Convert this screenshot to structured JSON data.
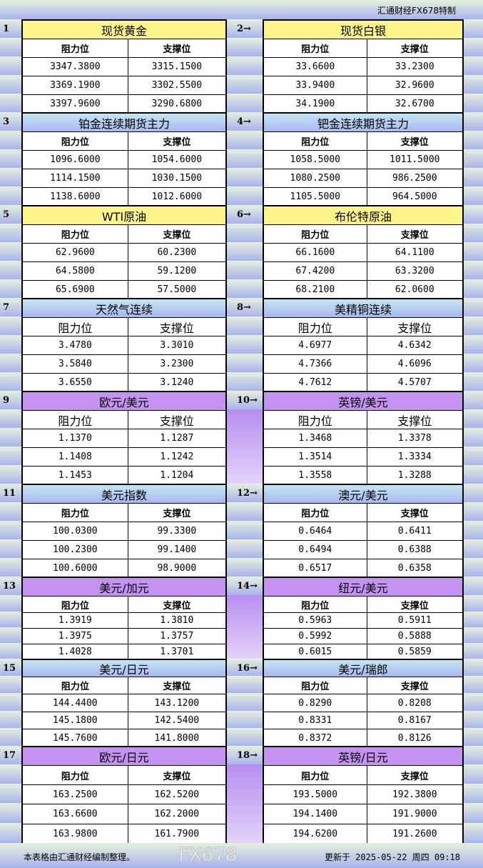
{
  "brand": "汇通财经FX678特制",
  "colors": {
    "yellow": "#fff58a",
    "blue": "#b8d4f2",
    "purple": "#c493f2"
  },
  "col_resist": "阻力位",
  "col_support": "支撑位",
  "sections": [
    {
      "theme": "yellow",
      "left": {
        "num": "1",
        "title": "现货黄金",
        "rows": [
          [
            "3347.3800",
            "3315.1500"
          ],
          [
            "3369.1900",
            "3302.5500"
          ],
          [
            "3397.9600",
            "3290.6800"
          ]
        ]
      },
      "right": {
        "num": "2→",
        "title": "现货白银",
        "rows": [
          [
            "33.6600",
            "33.2300"
          ],
          [
            "33.9400",
            "32.9600"
          ],
          [
            "34.1900",
            "32.6700"
          ]
        ]
      }
    },
    {
      "theme": "blue",
      "left": {
        "num": "3",
        "title": "铂金连续期货主力",
        "rows": [
          [
            "1096.6000",
            "1054.6000"
          ],
          [
            "1114.1500",
            "1030.1500"
          ],
          [
            "1138.6000",
            "1012.6000"
          ]
        ]
      },
      "right": {
        "num": "4→",
        "title": "钯金连续期货主力",
        "rows": [
          [
            "1058.5000",
            "1011.5000"
          ],
          [
            "1080.2500",
            "986.2500"
          ],
          [
            "1105.5000",
            "964.5000"
          ]
        ]
      }
    },
    {
      "theme": "yellow",
      "left": {
        "num": "5",
        "title": "WTI原油",
        "rows": [
          [
            "62.9600",
            "60.2300"
          ],
          [
            "64.5800",
            "59.1200"
          ],
          [
            "65.6900",
            "57.5000"
          ]
        ]
      },
      "right": {
        "num": "6→",
        "title": "布伦特原油",
        "rows": [
          [
            "66.1600",
            "64.1100"
          ],
          [
            "67.4200",
            "63.3200"
          ],
          [
            "68.2100",
            "62.0600"
          ]
        ]
      }
    },
    {
      "theme": "blue",
      "big": true,
      "left": {
        "num": "7",
        "title": "天然气连续",
        "rows": [
          [
            "3.4780",
            "3.3010"
          ],
          [
            "3.5840",
            "3.2300"
          ],
          [
            "3.6550",
            "3.1240"
          ]
        ]
      },
      "right": {
        "num": "8→",
        "title": "美精铜连续",
        "rows": [
          [
            "4.6977",
            "4.6342"
          ],
          [
            "4.7366",
            "4.6096"
          ],
          [
            "4.7612",
            "4.5707"
          ]
        ]
      }
    },
    {
      "theme": "purple",
      "big": true,
      "left": {
        "num": "9",
        "title": "欧元/美元",
        "rows": [
          [
            "1.1370",
            "1.1287"
          ],
          [
            "1.1408",
            "1.1242"
          ],
          [
            "1.1453",
            "1.1204"
          ]
        ]
      },
      "right": {
        "num": "10→",
        "title": "英镑/美元",
        "rows": [
          [
            "1.3468",
            "1.3378"
          ],
          [
            "1.3514",
            "1.3334"
          ],
          [
            "1.3558",
            "1.3288"
          ]
        ]
      }
    },
    {
      "theme": "blue",
      "left": {
        "num": "11",
        "title": "美元指数",
        "rows": [
          [
            "100.0300",
            "99.3300"
          ],
          [
            "100.2300",
            "99.1400"
          ],
          [
            "100.6000",
            "98.9000"
          ]
        ]
      },
      "right": {
        "num": "12→",
        "title": "澳元/美元",
        "rows": [
          [
            "0.6464",
            "0.6411"
          ],
          [
            "0.6494",
            "0.6388"
          ],
          [
            "0.6517",
            "0.6358"
          ]
        ]
      }
    },
    {
      "theme": "purple",
      "left": {
        "num": "13",
        "title": "美元/加元",
        "rows": [
          [
            "1.3919",
            "1.3810"
          ],
          [
            "1.3975",
            "1.3757"
          ],
          [
            "1.4028",
            "1.3701"
          ]
        ]
      },
      "right": {
        "num": "14→",
        "title": "纽元/美元",
        "rows": [
          [
            "0.5963",
            "0.5911"
          ],
          [
            "0.5992",
            "0.5888"
          ],
          [
            "0.6015",
            "0.5859"
          ]
        ]
      }
    },
    {
      "theme": "blue",
      "left": {
        "num": "15",
        "title": "美元/日元",
        "rows": [
          [
            "144.4400",
            "143.1200"
          ],
          [
            "145.1800",
            "142.5400"
          ],
          [
            "145.7600",
            "141.8000"
          ]
        ]
      },
      "right": {
        "num": "16→",
        "title": "美元/瑞郎",
        "rows": [
          [
            "0.8290",
            "0.8208"
          ],
          [
            "0.8331",
            "0.8167"
          ],
          [
            "0.8372",
            "0.8126"
          ]
        ]
      }
    },
    {
      "theme": "purple",
      "left": {
        "num": "17",
        "title": "欧元/日元",
        "rows": [
          [
            "163.2500",
            "162.5200"
          ],
          [
            "163.6600",
            "162.2000"
          ],
          [
            "163.9800",
            "161.7900"
          ]
        ]
      },
      "right": {
        "num": "18→",
        "title": "英镑/日元",
        "rows": [
          [
            "193.5000",
            "192.3800"
          ],
          [
            "194.1400",
            "191.9000"
          ],
          [
            "194.6200",
            "191.2600"
          ]
        ]
      }
    }
  ],
  "footer": {
    "note": "本表格由汇通财经编制整理。",
    "updated": "更新于 2025-05-22 周四 09:18"
  },
  "watermark": "FX678"
}
